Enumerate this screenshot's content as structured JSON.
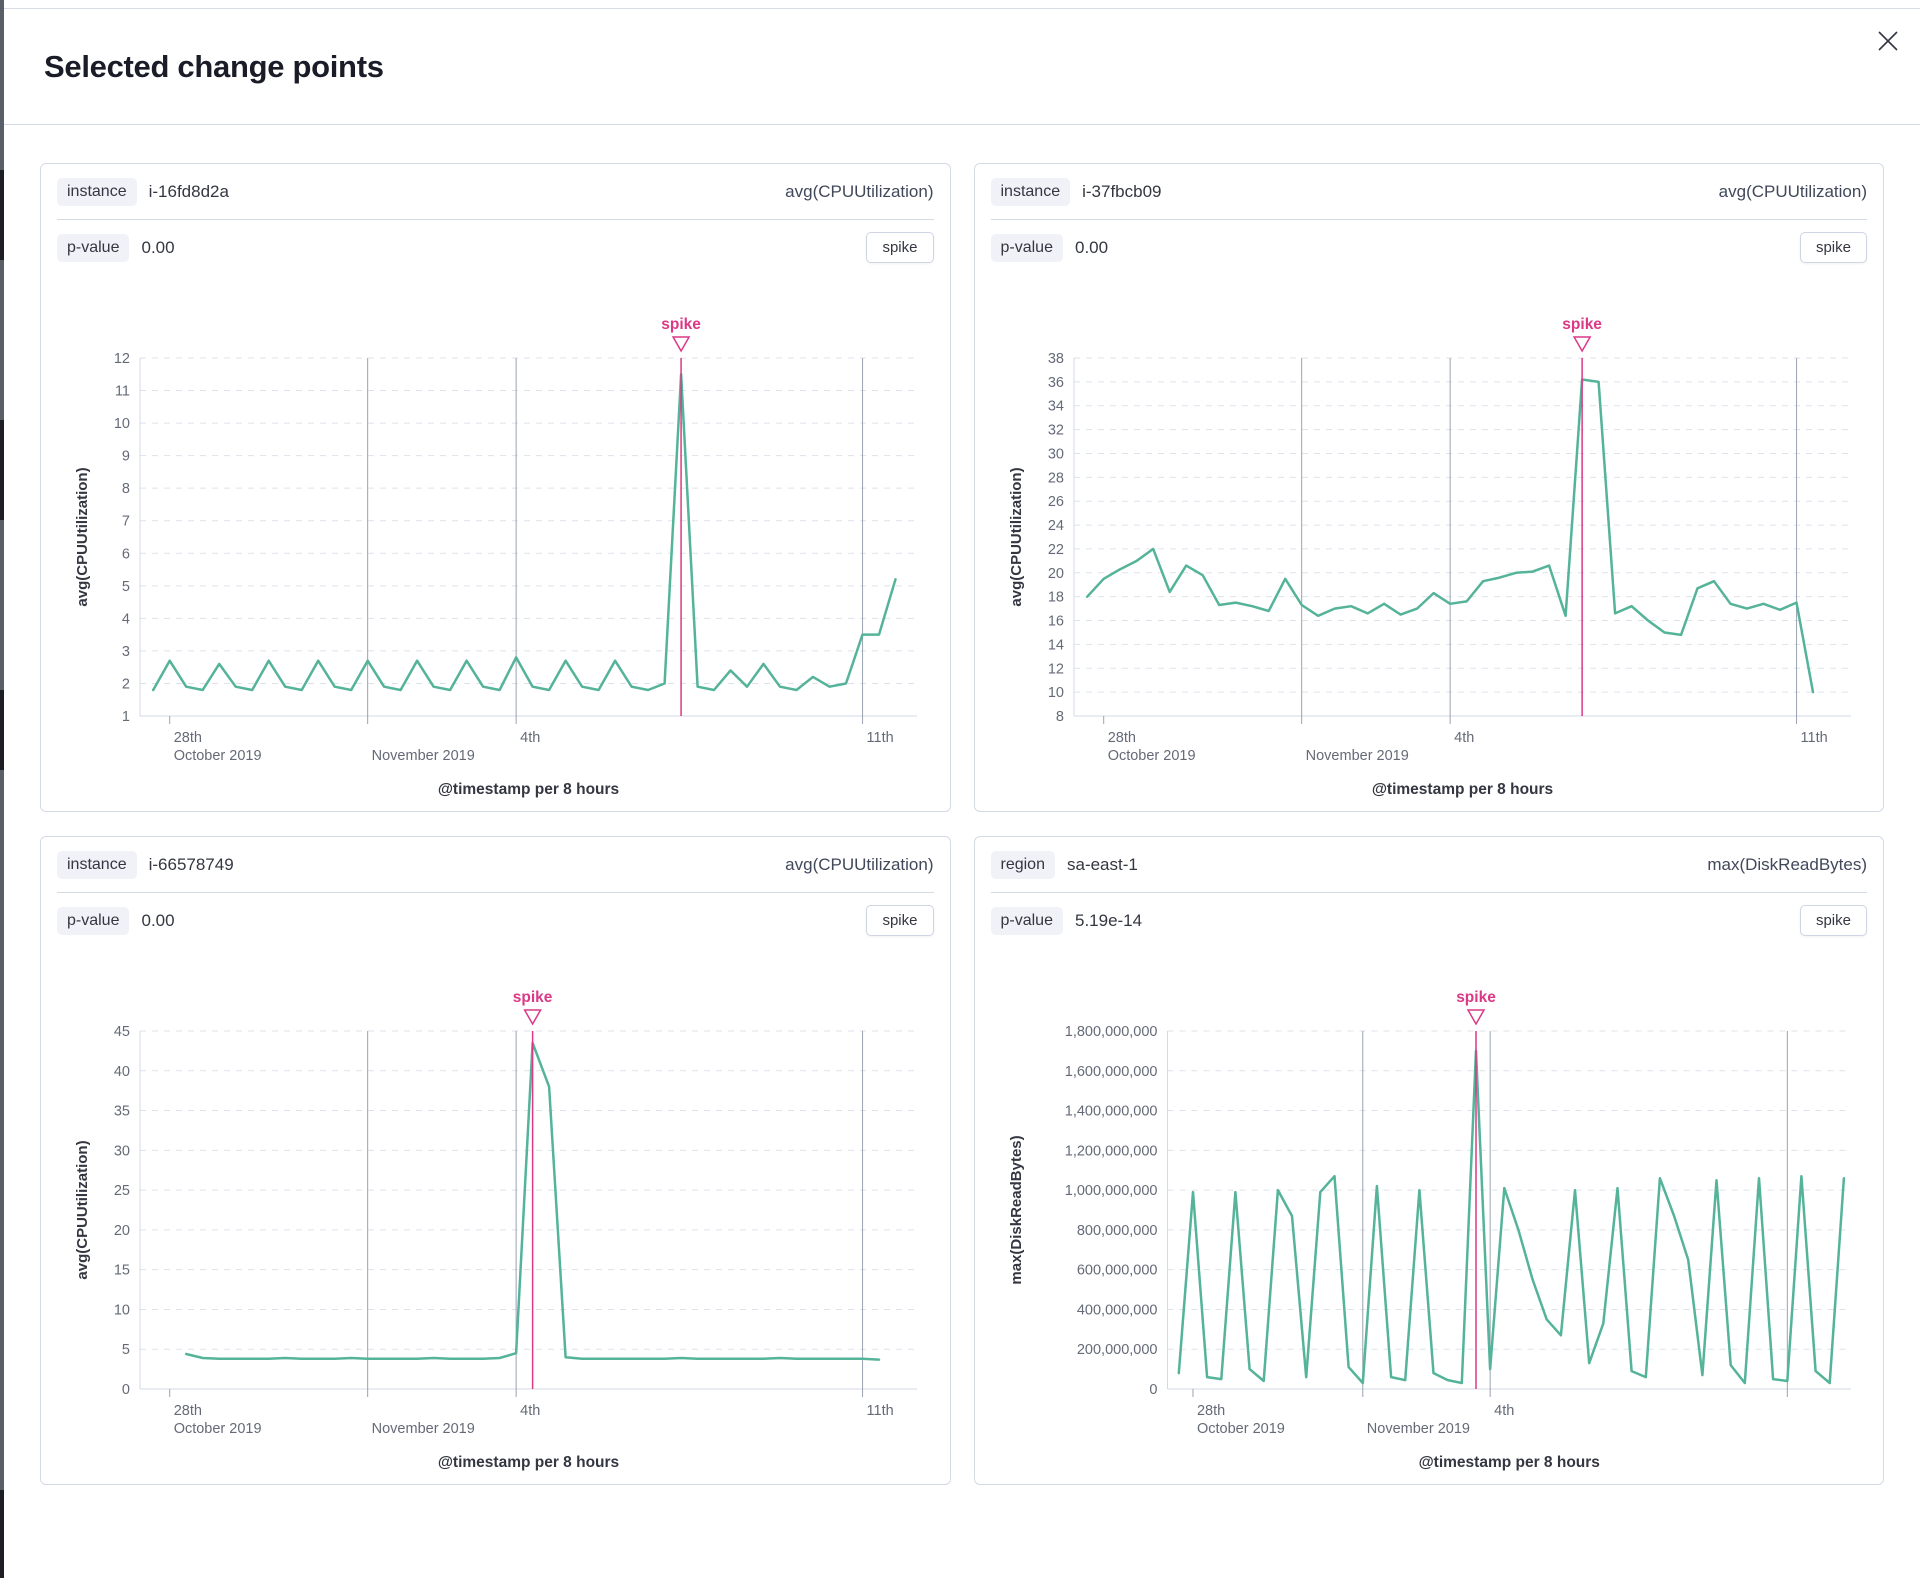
{
  "modal": {
    "title": "Selected change points"
  },
  "colors": {
    "accent": "#db3985",
    "line": "#54b399",
    "grid": "#dde2ea",
    "axis": "#d3dae6",
    "tick_line": "#9aa2b1",
    "text": "#343741",
    "muted": "#646a77"
  },
  "panels": [
    {
      "field_label": "instance",
      "field_value": "i-16fd8d2a",
      "agg": "avg(CPUUtilization)",
      "p_label": "p-value",
      "p_value": "0.00",
      "change_type": "spike",
      "chart_data": {
        "type": "line",
        "xlabel": "@timestamp per 8 hours",
        "ylabel": "avg(CPUUtilization)",
        "ylim": [
          1,
          12
        ],
        "y_tick_step": 1,
        "y_format": "plain",
        "x_domain_days": [
          -0.6,
          15.1
        ],
        "x_ticks": [
          {
            "day": 0,
            "line1": "28th",
            "line2": "October 2019"
          },
          {
            "day": 4,
            "line1": "",
            "line2": "November 2019"
          },
          {
            "day": 7,
            "line1": "4th",
            "line2": ""
          },
          {
            "day": 14,
            "line1": "11th",
            "line2": ""
          }
        ],
        "series_start_day": -0.333,
        "series_step_days": 0.3333,
        "values": [
          1.8,
          2.7,
          1.9,
          1.8,
          2.6,
          1.9,
          1.8,
          2.7,
          1.9,
          1.8,
          2.7,
          1.9,
          1.8,
          2.7,
          1.9,
          1.8,
          2.7,
          1.9,
          1.8,
          2.7,
          1.9,
          1.8,
          2.8,
          1.9,
          1.8,
          2.7,
          1.9,
          1.8,
          2.7,
          1.9,
          1.8,
          2.0,
          11.5,
          1.9,
          1.8,
          2.4,
          1.9,
          2.6,
          1.9,
          1.8,
          2.2,
          1.9,
          2.0,
          3.5,
          3.5,
          5.2
        ],
        "annotation": {
          "label": "spike",
          "day": 10.333
        }
      }
    },
    {
      "field_label": "instance",
      "field_value": "i-37fbcb09",
      "agg": "avg(CPUUtilization)",
      "p_label": "p-value",
      "p_value": "0.00",
      "change_type": "spike",
      "chart_data": {
        "type": "line",
        "xlabel": "@timestamp per 8 hours",
        "ylabel": "avg(CPUUtilization)",
        "ylim": [
          8,
          38
        ],
        "y_tick_step": 2,
        "y_format": "plain",
        "x_domain_days": [
          -0.6,
          15.1
        ],
        "x_ticks": [
          {
            "day": 0,
            "line1": "28th",
            "line2": "October 2019"
          },
          {
            "day": 4,
            "line1": "",
            "line2": "November 2019"
          },
          {
            "day": 7,
            "line1": "4th",
            "line2": ""
          },
          {
            "day": 14,
            "line1": "11th",
            "line2": ""
          }
        ],
        "series_start_day": -0.333,
        "series_step_days": 0.3333,
        "values": [
          18.0,
          19.5,
          20.3,
          21.0,
          22.0,
          18.4,
          20.6,
          19.8,
          17.3,
          17.5,
          17.2,
          16.8,
          19.5,
          17.3,
          16.4,
          17.0,
          17.2,
          16.6,
          17.4,
          16.5,
          17.0,
          18.3,
          17.4,
          17.6,
          19.3,
          19.6,
          20.0,
          20.1,
          20.6,
          16.4,
          36.2,
          36.0,
          16.6,
          17.2,
          16.0,
          15.0,
          14.8,
          18.7,
          19.3,
          17.4,
          17.0,
          17.4,
          16.9,
          17.5,
          10.0
        ],
        "annotation": {
          "label": "spike",
          "day": 9.667
        }
      }
    },
    {
      "field_label": "instance",
      "field_value": "i-66578749",
      "agg": "avg(CPUUtilization)",
      "p_label": "p-value",
      "p_value": "0.00",
      "change_type": "spike",
      "chart_data": {
        "type": "line",
        "xlabel": "@timestamp per 8 hours",
        "ylabel": "avg(CPUUtilization)",
        "ylim": [
          0,
          45
        ],
        "y_tick_step": 5,
        "y_format": "plain",
        "x_domain_days": [
          -0.6,
          15.1
        ],
        "x_ticks": [
          {
            "day": 0,
            "line1": "28th",
            "line2": "October 2019"
          },
          {
            "day": 4,
            "line1": "",
            "line2": "November 2019"
          },
          {
            "day": 7,
            "line1": "4th",
            "line2": ""
          },
          {
            "day": 14,
            "line1": "11th",
            "line2": ""
          }
        ],
        "series_start_day": 0.333,
        "series_step_days": 0.3333,
        "values": [
          4.4,
          3.9,
          3.8,
          3.8,
          3.8,
          3.8,
          3.9,
          3.8,
          3.8,
          3.8,
          3.9,
          3.8,
          3.8,
          3.8,
          3.8,
          3.9,
          3.8,
          3.8,
          3.8,
          3.9,
          4.5,
          43.5,
          38.0,
          4.0,
          3.8,
          3.8,
          3.8,
          3.8,
          3.8,
          3.8,
          3.9,
          3.8,
          3.8,
          3.8,
          3.8,
          3.8,
          3.9,
          3.8,
          3.8,
          3.8,
          3.8,
          3.8,
          3.7
        ],
        "annotation": {
          "label": "spike",
          "day": 7.333
        }
      }
    },
    {
      "field_label": "region",
      "field_value": "sa-east-1",
      "agg": "max(DiskReadBytes)",
      "p_label": "p-value",
      "p_value": "5.19e-14",
      "change_type": "spike",
      "chart_data": {
        "type": "line",
        "xlabel": "@timestamp per 8 hours",
        "ylabel": "max(DiskReadBytes)",
        "ylim": [
          0,
          1800000000
        ],
        "y_tick_step": 200000000,
        "y_format": "comma",
        "x_domain_days": [
          -0.6,
          15.5
        ],
        "x_ticks": [
          {
            "day": 0,
            "line1": "28th",
            "line2": "October 2019"
          },
          {
            "day": 4,
            "line1": "",
            "line2": "November 2019"
          },
          {
            "day": 7,
            "line1": "4th",
            "line2": ""
          },
          {
            "day": 14,
            "line1": "",
            "line2": ""
          }
        ],
        "series_start_day": -0.333,
        "series_step_days": 0.3333,
        "values": [
          80000000,
          990000000,
          60000000,
          50000000,
          990000000,
          100000000,
          40000000,
          1000000000,
          870000000,
          60000000,
          990000000,
          1070000000,
          110000000,
          30000000,
          1020000000,
          60000000,
          45000000,
          1000000000,
          80000000,
          45000000,
          30000000,
          1700000000,
          100000000,
          1010000000,
          800000000,
          550000000,
          350000000,
          270000000,
          1000000000,
          130000000,
          330000000,
          1010000000,
          90000000,
          60000000,
          1060000000,
          870000000,
          650000000,
          70000000,
          1050000000,
          120000000,
          30000000,
          1060000000,
          50000000,
          40000000,
          1070000000,
          90000000,
          30000000,
          1060000000
        ],
        "annotation": {
          "label": "spike",
          "day": 6.667
        }
      }
    }
  ]
}
